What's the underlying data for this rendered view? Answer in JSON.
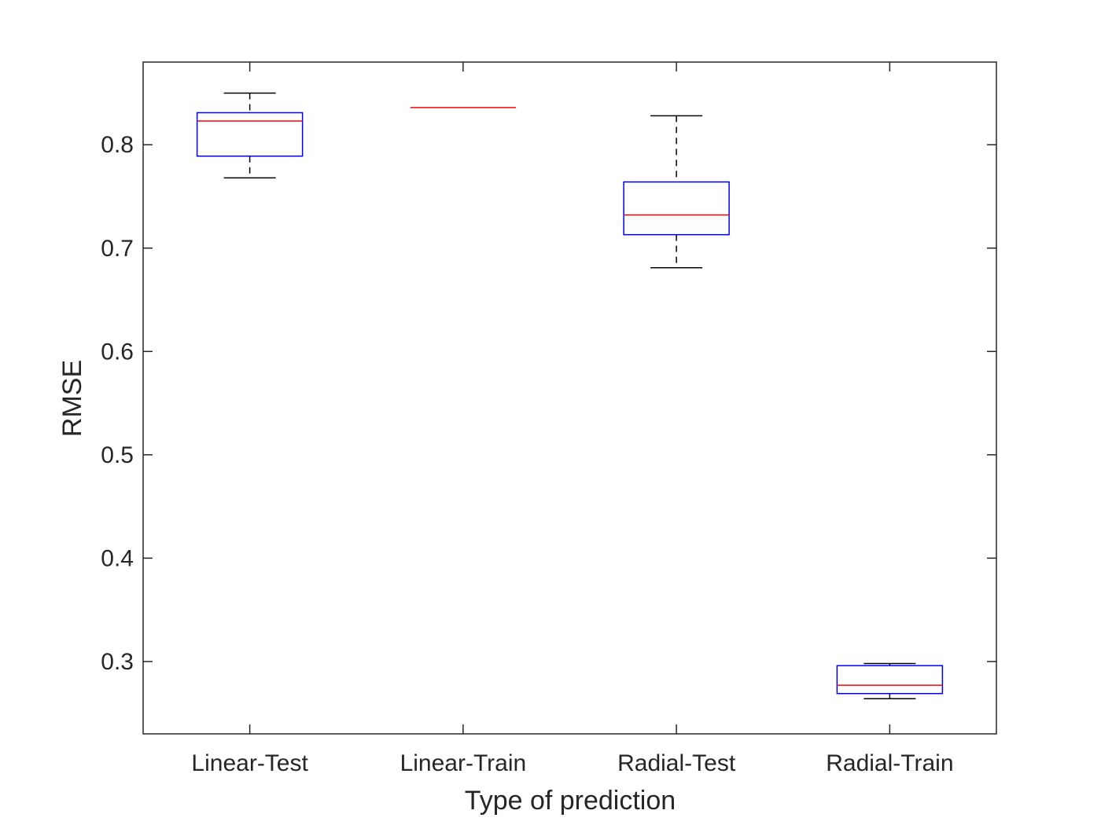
{
  "chart_data": {
    "type": "box",
    "xlabel": "Type of prediction",
    "ylabel": "RMSE",
    "ylim": [
      0.23,
      0.88
    ],
    "yticks": [
      "0.3",
      "0.4",
      "0.5",
      "0.6",
      "0.7",
      "0.8"
    ],
    "grid": false,
    "categories": [
      "Linear-Test",
      "Linear-Train",
      "Radial-Test",
      "Radial-Train"
    ],
    "boxes": [
      {
        "category": "Linear-Test",
        "whisker_low": 0.768,
        "q1": 0.789,
        "median": 0.823,
        "q3": 0.831,
        "whisker_high": 0.85
      },
      {
        "category": "Linear-Train",
        "whisker_low": 0.836,
        "q1": 0.836,
        "median": 0.836,
        "q3": 0.836,
        "whisker_high": 0.836
      },
      {
        "category": "Radial-Test",
        "whisker_low": 0.681,
        "q1": 0.713,
        "median": 0.732,
        "q3": 0.764,
        "whisker_high": 0.828
      },
      {
        "category": "Radial-Train",
        "whisker_low": 0.264,
        "q1": 0.269,
        "median": 0.277,
        "q3": 0.296,
        "whisker_high": 0.298
      }
    ],
    "colors": {
      "box": "#0000ff",
      "median": "#ff0000",
      "whisker": "#000000",
      "axis": "#262626"
    }
  }
}
